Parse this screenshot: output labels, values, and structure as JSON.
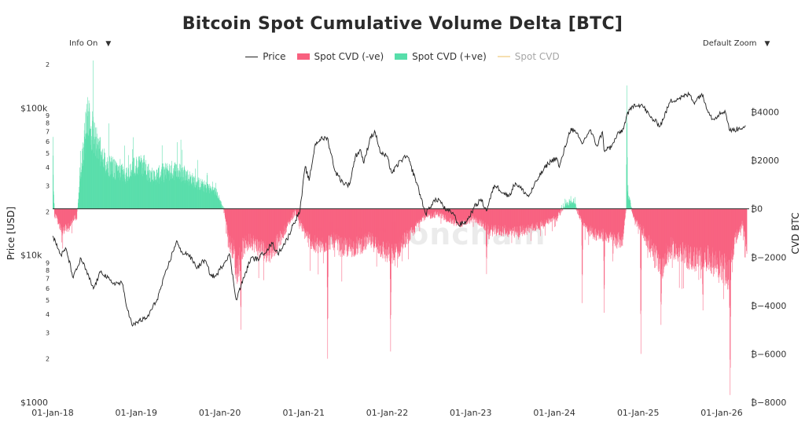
{
  "chart_data": {
    "type": "line",
    "title": "Bitcoin Spot Cumulative Volume Delta [BTC]",
    "controls": {
      "info": "Info On",
      "zoom": "Default Zoom",
      "arrow": "▼"
    },
    "legend": [
      "Price",
      "Spot CVD (-ve)",
      "Spot CVD (+ve)",
      "Spot CVD"
    ],
    "ylabel_left": "Price [USD]",
    "ylabel_right": "CVD BTC",
    "watermark": "checkonchain",
    "colors": {
      "price": "#222222",
      "negative": "#f8607f",
      "positive": "#57deaa",
      "cvd": "#f6dfb0",
      "zero_line": "#222222"
    },
    "x_ticks": [
      "01-Jan-18",
      "01-Jan-19",
      "01-Jan-20",
      "01-Jan-21",
      "01-Jan-22",
      "01-Jan-23",
      "01-Jan-24",
      "01-Jan-25",
      "01-Jan-26"
    ],
    "x_range": [
      "2018-01-01",
      "2026-05-01"
    ],
    "y_left": {
      "scale": "log",
      "range": [
        1000,
        200000
      ],
      "ticks": [
        {
          "v": 1000,
          "t": "$1000",
          "major": true
        },
        {
          "v": 2000,
          "t": "2"
        },
        {
          "v": 3000,
          "t": "3"
        },
        {
          "v": 4000,
          "t": "4"
        },
        {
          "v": 5000,
          "t": "5"
        },
        {
          "v": 6000,
          "t": "6"
        },
        {
          "v": 7000,
          "t": "7"
        },
        {
          "v": 8000,
          "t": "8"
        },
        {
          "v": 9000,
          "t": "9"
        },
        {
          "v": 10000,
          "t": "$10k",
          "major": true
        },
        {
          "v": 20000,
          "t": "2"
        },
        {
          "v": 30000,
          "t": "3"
        },
        {
          "v": 40000,
          "t": "4"
        },
        {
          "v": 50000,
          "t": "5"
        },
        {
          "v": 60000,
          "t": "6"
        },
        {
          "v": 70000,
          "t": "7"
        },
        {
          "v": 80000,
          "t": "8"
        },
        {
          "v": 90000,
          "t": "9"
        },
        {
          "v": 100000,
          "t": "$100k",
          "major": true
        },
        {
          "v": 200000,
          "t": "2"
        }
      ]
    },
    "y_right": {
      "scale": "linear",
      "range": [
        -8000,
        6000
      ],
      "ticks": [
        {
          "v": 4000,
          "t": "₿4000"
        },
        {
          "v": 2000,
          "t": "₿2000"
        },
        {
          "v": 0,
          "t": "₿0"
        },
        {
          "v": -2000,
          "t": "₿−2000"
        },
        {
          "v": -4000,
          "t": "₿−4000"
        },
        {
          "v": -6000,
          "t": "₿−6000"
        },
        {
          "v": -8000,
          "t": "₿−8000"
        }
      ]
    },
    "price_series": {
      "name": "Price",
      "x": [
        "2018-01-01",
        "2018-02-06",
        "2018-03-01",
        "2018-04-01",
        "2018-05-05",
        "2018-06-28",
        "2018-08-01",
        "2018-09-15",
        "2018-11-01",
        "2018-11-25",
        "2018-12-15",
        "2019-01-15",
        "2019-02-15",
        "2019-04-02",
        "2019-05-15",
        "2019-06-26",
        "2019-07-15",
        "2019-08-15",
        "2019-09-25",
        "2019-10-26",
        "2019-11-25",
        "2019-12-15",
        "2020-02-12",
        "2020-03-12",
        "2020-04-15",
        "2020-05-15",
        "2020-06-15",
        "2020-07-27",
        "2020-08-17",
        "2020-09-10",
        "2020-10-21",
        "2020-11-15",
        "2020-12-16",
        "2021-01-08",
        "2021-01-25",
        "2021-02-21",
        "2021-03-13",
        "2021-04-14",
        "2021-05-19",
        "2021-06-22",
        "2021-07-20",
        "2021-08-15",
        "2021-09-07",
        "2021-09-21",
        "2021-10-20",
        "2021-11-10",
        "2021-12-04",
        "2021-12-30",
        "2022-01-22",
        "2022-03-01",
        "2022-03-30",
        "2022-05-10",
        "2022-06-18",
        "2022-07-20",
        "2022-08-15",
        "2022-09-15",
        "2022-10-15",
        "2022-11-09",
        "2022-12-15",
        "2023-01-15",
        "2023-02-15",
        "2023-03-10",
        "2023-04-15",
        "2023-06-15",
        "2023-07-15",
        "2023-09-11",
        "2023-10-25",
        "2023-12-05",
        "2024-01-10",
        "2024-01-23",
        "2024-02-28",
        "2024-03-14",
        "2024-04-15",
        "2024-05-01",
        "2024-06-05",
        "2024-07-05",
        "2024-07-29",
        "2024-08-05",
        "2024-09-06",
        "2024-09-30",
        "2024-10-29",
        "2024-11-13",
        "2024-12-17",
        "2025-01-20",
        "2025-02-25",
        "2025-04-08",
        "2025-05-22",
        "2025-07-14",
        "2025-08-14",
        "2025-09-01",
        "2025-10-06",
        "2025-10-20",
        "2025-11-21",
        "2025-12-15",
        "2026-01-15",
        "2026-02-06",
        "2026-03-15",
        "2026-04-15"
      ],
      "y": [
        13500,
        10000,
        11000,
        7000,
        9500,
        5900,
        7800,
        6500,
        6400,
        4200,
        3300,
        3600,
        3700,
        5000,
        8000,
        12500,
        10500,
        10200,
        8200,
        9300,
        7200,
        7200,
        10200,
        5000,
        7000,
        9500,
        9400,
        11000,
        12000,
        10200,
        12800,
        16000,
        20000,
        40000,
        32000,
        57000,
        61000,
        63000,
        37000,
        31000,
        30000,
        47000,
        52000,
        42000,
        64000,
        68000,
        49000,
        47000,
        36000,
        44000,
        47000,
        31000,
        19000,
        23000,
        24000,
        20000,
        19500,
        16000,
        17000,
        21000,
        24000,
        20000,
        30000,
        25000,
        31000,
        25000,
        34000,
        42000,
        46000,
        39500,
        62000,
        73000,
        64000,
        57000,
        71000,
        55000,
        69000,
        52000,
        54000,
        65000,
        72000,
        90000,
        106000,
        104000,
        86000,
        76000,
        111000,
        119000,
        124000,
        109000,
        125000,
        108000,
        84000,
        89000,
        96000,
        70000,
        72000,
        76000
      ]
    },
    "cvd_series": {
      "name": "Spot CVD",
      "x": [
        "2018-01-01",
        "2018-01-08",
        "2018-02-10",
        "2018-03-10",
        "2018-04-05",
        "2018-04-15",
        "2018-05-10",
        "2018-06-01",
        "2018-07-15",
        "2018-08-20",
        "2018-09-20",
        "2018-10-20",
        "2018-11-15",
        "2018-12-20",
        "2019-02-01",
        "2019-03-15",
        "2019-05-01",
        "2019-06-15",
        "2019-08-01",
        "2019-09-15",
        "2019-11-01",
        "2019-12-15",
        "2020-01-20",
        "2020-02-10",
        "2020-03-01",
        "2020-03-12",
        "2020-04-10",
        "2020-05-15",
        "2020-06-20",
        "2020-08-01",
        "2020-09-10",
        "2020-10-20",
        "2020-11-25",
        "2021-01-05",
        "2021-02-15",
        "2021-03-25",
        "2021-05-05",
        "2021-06-15",
        "2021-07-25",
        "2021-09-05",
        "2021-10-15",
        "2021-11-20",
        "2021-12-25",
        "2022-02-01",
        "2022-03-15",
        "2022-04-20",
        "2022-05-25",
        "2022-07-01",
        "2022-08-10",
        "2022-09-15",
        "2022-10-25",
        "2022-12-01",
        "2023-01-10",
        "2023-02-15",
        "2023-03-20",
        "2023-04-25",
        "2023-06-01",
        "2023-07-10",
        "2023-08-15",
        "2023-09-20",
        "2023-10-25",
        "2023-12-01",
        "2024-01-10",
        "2024-02-15",
        "2024-03-25",
        "2024-04-25",
        "2024-06-01",
        "2024-07-10",
        "2024-08-20",
        "2024-09-20",
        "2024-10-25",
        "2024-11-15",
        "2024-12-15",
        "2025-01-25",
        "2025-03-05",
        "2025-04-15",
        "2025-05-25",
        "2025-07-01",
        "2025-08-10",
        "2025-09-15",
        "2025-10-20",
        "2025-11-25",
        "2026-01-05",
        "2026-02-05",
        "2026-02-15",
        "2026-03-01",
        "2026-04-01",
        "2026-04-20"
      ],
      "y": [
        1800,
        -200,
        -900,
        -800,
        -300,
        -400,
        2200,
        3700,
        2600,
        1800,
        1700,
        1500,
        1300,
        1700,
        1800,
        1300,
        1500,
        1600,
        1400,
        1100,
        900,
        700,
        -100,
        -1400,
        -1700,
        -2600,
        -1600,
        -1300,
        -1600,
        -1800,
        -1400,
        -700,
        -100,
        -1000,
        -1500,
        -1500,
        -1300,
        -1600,
        -1600,
        -1500,
        -1300,
        -1500,
        -1800,
        -1900,
        -1300,
        -1000,
        -400,
        -300,
        -200,
        -400,
        -600,
        -600,
        -400,
        -600,
        -900,
        -900,
        -900,
        -1000,
        -900,
        -800,
        -700,
        -500,
        -400,
        200,
        300,
        -400,
        -900,
        -1100,
        -1100,
        -1300,
        -1300,
        700,
        -500,
        -1000,
        -1800,
        -2300,
        -1600,
        -1800,
        -2000,
        -2100,
        -2000,
        -2200,
        -2400,
        -2900,
        -1800,
        -1300,
        -600,
        -1500
      ]
    },
    "cvd_spikes": [
      {
        "x": "2020-04-01",
        "y": -5000
      },
      {
        "x": "2021-04-15",
        "y": -6200
      },
      {
        "x": "2022-01-15",
        "y": -5900
      },
      {
        "x": "2023-03-10",
        "y": -2700
      },
      {
        "x": "2024-05-01",
        "y": -3900
      },
      {
        "x": "2024-08-05",
        "y": -4300
      },
      {
        "x": "2024-11-12",
        "y": 5100
      },
      {
        "x": "2025-01-12",
        "y": -6000
      },
      {
        "x": "2025-04-10",
        "y": -4800
      },
      {
        "x": "2025-10-10",
        "y": -4200
      },
      {
        "x": "2026-02-06",
        "y": -7700
      }
    ]
  }
}
